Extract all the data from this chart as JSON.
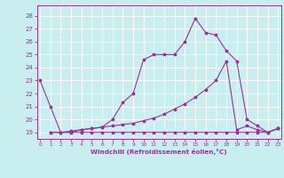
{
  "xlabel": "Windchill (Refroidissement éolien,°C)",
  "bg_color": "#c8eef0",
  "line_color": "#993399",
  "grid_color": "#ffffff",
  "x_ticks": [
    0,
    1,
    2,
    3,
    4,
    5,
    6,
    7,
    8,
    9,
    10,
    11,
    12,
    13,
    14,
    15,
    16,
    17,
    18,
    19,
    20,
    21,
    22,
    23
  ],
  "y_ticks": [
    19,
    20,
    21,
    22,
    23,
    24,
    25,
    26,
    27,
    28
  ],
  "xlim": [
    -0.3,
    23.3
  ],
  "ylim": [
    18.5,
    28.8
  ],
  "line1_x": [
    0,
    1,
    2,
    3,
    4,
    5,
    6,
    7,
    8,
    9,
    10,
    11,
    12,
    13,
    14,
    15,
    16,
    17,
    18,
    19,
    20,
    21,
    22,
    23
  ],
  "line1_y": [
    23,
    21,
    19.0,
    19.0,
    19.2,
    19.3,
    19.4,
    20.0,
    21.3,
    22.0,
    24.6,
    25.0,
    25.0,
    25.0,
    26.0,
    27.8,
    26.7,
    26.5,
    25.3,
    24.5,
    20.0,
    19.5,
    19.0,
    19.3
  ],
  "line2_x": [
    1,
    2,
    3,
    4,
    5,
    6,
    7,
    8,
    9,
    10,
    11,
    12,
    13,
    14,
    15,
    16,
    17,
    18,
    19,
    20,
    21,
    22,
    23
  ],
  "line2_y": [
    19.0,
    19.0,
    19.1,
    19.2,
    19.3,
    19.4,
    19.5,
    19.6,
    19.7,
    19.9,
    20.1,
    20.4,
    20.8,
    21.2,
    21.7,
    22.3,
    23.0,
    24.5,
    19.2,
    19.5,
    19.2,
    19.0,
    19.3
  ],
  "line3_x": [
    1,
    2,
    3,
    4,
    5,
    6,
    7,
    8,
    9,
    10,
    11,
    12,
    13,
    14,
    15,
    16,
    17,
    18,
    19,
    20,
    21,
    22,
    23
  ],
  "line3_y": [
    19,
    19,
    19,
    19,
    19,
    19,
    19,
    19,
    19,
    19,
    19,
    19,
    19,
    19,
    19,
    19,
    19,
    19,
    19,
    19,
    19,
    19,
    19.3
  ]
}
